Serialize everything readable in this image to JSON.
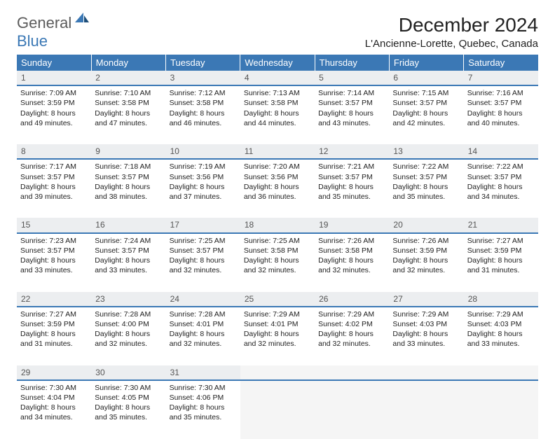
{
  "brand": {
    "general": "General",
    "blue": "Blue"
  },
  "header": {
    "month_title": "December 2024",
    "location": "L'Ancienne-Lorette, Quebec, Canada"
  },
  "colors": {
    "header_bg": "#3b78b5",
    "header_text": "#ffffff",
    "daynum_bg": "#eceef0",
    "daynum_border": "#3b78b5",
    "body_text": "#222222"
  },
  "day_labels": [
    "Sunday",
    "Monday",
    "Tuesday",
    "Wednesday",
    "Thursday",
    "Friday",
    "Saturday"
  ],
  "weeks": [
    [
      {
        "n": "1",
        "sr": "7:09 AM",
        "ss": "3:59 PM",
        "dl": "8 hours and 49 minutes."
      },
      {
        "n": "2",
        "sr": "7:10 AM",
        "ss": "3:58 PM",
        "dl": "8 hours and 47 minutes."
      },
      {
        "n": "3",
        "sr": "7:12 AM",
        "ss": "3:58 PM",
        "dl": "8 hours and 46 minutes."
      },
      {
        "n": "4",
        "sr": "7:13 AM",
        "ss": "3:58 PM",
        "dl": "8 hours and 44 minutes."
      },
      {
        "n": "5",
        "sr": "7:14 AM",
        "ss": "3:57 PM",
        "dl": "8 hours and 43 minutes."
      },
      {
        "n": "6",
        "sr": "7:15 AM",
        "ss": "3:57 PM",
        "dl": "8 hours and 42 minutes."
      },
      {
        "n": "7",
        "sr": "7:16 AM",
        "ss": "3:57 PM",
        "dl": "8 hours and 40 minutes."
      }
    ],
    [
      {
        "n": "8",
        "sr": "7:17 AM",
        "ss": "3:57 PM",
        "dl": "8 hours and 39 minutes."
      },
      {
        "n": "9",
        "sr": "7:18 AM",
        "ss": "3:57 PM",
        "dl": "8 hours and 38 minutes."
      },
      {
        "n": "10",
        "sr": "7:19 AM",
        "ss": "3:56 PM",
        "dl": "8 hours and 37 minutes."
      },
      {
        "n": "11",
        "sr": "7:20 AM",
        "ss": "3:56 PM",
        "dl": "8 hours and 36 minutes."
      },
      {
        "n": "12",
        "sr": "7:21 AM",
        "ss": "3:57 PM",
        "dl": "8 hours and 35 minutes."
      },
      {
        "n": "13",
        "sr": "7:22 AM",
        "ss": "3:57 PM",
        "dl": "8 hours and 35 minutes."
      },
      {
        "n": "14",
        "sr": "7:22 AM",
        "ss": "3:57 PM",
        "dl": "8 hours and 34 minutes."
      }
    ],
    [
      {
        "n": "15",
        "sr": "7:23 AM",
        "ss": "3:57 PM",
        "dl": "8 hours and 33 minutes."
      },
      {
        "n": "16",
        "sr": "7:24 AM",
        "ss": "3:57 PM",
        "dl": "8 hours and 33 minutes."
      },
      {
        "n": "17",
        "sr": "7:25 AM",
        "ss": "3:57 PM",
        "dl": "8 hours and 32 minutes."
      },
      {
        "n": "18",
        "sr": "7:25 AM",
        "ss": "3:58 PM",
        "dl": "8 hours and 32 minutes."
      },
      {
        "n": "19",
        "sr": "7:26 AM",
        "ss": "3:58 PM",
        "dl": "8 hours and 32 minutes."
      },
      {
        "n": "20",
        "sr": "7:26 AM",
        "ss": "3:59 PM",
        "dl": "8 hours and 32 minutes."
      },
      {
        "n": "21",
        "sr": "7:27 AM",
        "ss": "3:59 PM",
        "dl": "8 hours and 31 minutes."
      }
    ],
    [
      {
        "n": "22",
        "sr": "7:27 AM",
        "ss": "3:59 PM",
        "dl": "8 hours and 31 minutes."
      },
      {
        "n": "23",
        "sr": "7:28 AM",
        "ss": "4:00 PM",
        "dl": "8 hours and 32 minutes."
      },
      {
        "n": "24",
        "sr": "7:28 AM",
        "ss": "4:01 PM",
        "dl": "8 hours and 32 minutes."
      },
      {
        "n": "25",
        "sr": "7:29 AM",
        "ss": "4:01 PM",
        "dl": "8 hours and 32 minutes."
      },
      {
        "n": "26",
        "sr": "7:29 AM",
        "ss": "4:02 PM",
        "dl": "8 hours and 32 minutes."
      },
      {
        "n": "27",
        "sr": "7:29 AM",
        "ss": "4:03 PM",
        "dl": "8 hours and 33 minutes."
      },
      {
        "n": "28",
        "sr": "7:29 AM",
        "ss": "4:03 PM",
        "dl": "8 hours and 33 minutes."
      }
    ],
    [
      {
        "n": "29",
        "sr": "7:30 AM",
        "ss": "4:04 PM",
        "dl": "8 hours and 34 minutes."
      },
      {
        "n": "30",
        "sr": "7:30 AM",
        "ss": "4:05 PM",
        "dl": "8 hours and 35 minutes."
      },
      {
        "n": "31",
        "sr": "7:30 AM",
        "ss": "4:06 PM",
        "dl": "8 hours and 35 minutes."
      },
      null,
      null,
      null,
      null
    ]
  ],
  "labels": {
    "sunrise": "Sunrise:",
    "sunset": "Sunset:",
    "daylight": "Daylight:"
  }
}
